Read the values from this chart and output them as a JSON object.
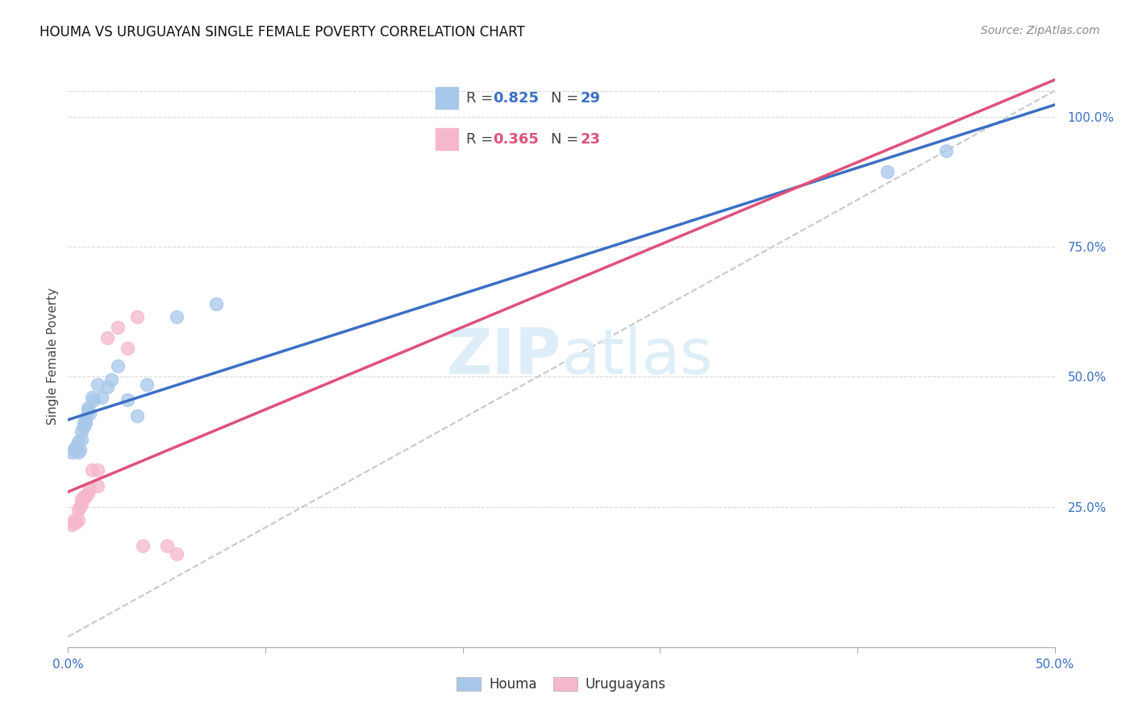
{
  "title": "HOUMA VS URUGUAYAN SINGLE FEMALE POVERTY CORRELATION CHART",
  "source": "Source: ZipAtlas.com",
  "ylabel": "Single Female Poverty",
  "xlim": [
    0.0,
    0.5
  ],
  "ylim": [
    -0.02,
    1.1
  ],
  "ytick_positions": [
    0.25,
    0.5,
    0.75,
    1.0
  ],
  "ytick_labels": [
    "25.0%",
    "50.0%",
    "75.0%",
    "100.0%"
  ],
  "xtick_positions": [
    0.0,
    0.1,
    0.2,
    0.3,
    0.4,
    0.5
  ],
  "houma_R": 0.825,
  "houma_N": 29,
  "uruguayan_R": 0.365,
  "uruguayan_N": 23,
  "houma_color": "#a8c8ea",
  "uruguayan_color": "#f5b8cb",
  "houma_line_color": "#3a6fc4",
  "uruguayan_line_color": "#e0507a",
  "diagonal_color": "#c8c8c8",
  "houma_x": [
    0.002,
    0.003,
    0.004,
    0.005,
    0.005,
    0.006,
    0.007,
    0.007,
    0.008,
    0.008,
    0.009,
    0.009,
    0.01,
    0.01,
    0.011,
    0.012,
    0.013,
    0.015,
    0.017,
    0.02,
    0.022,
    0.025,
    0.03,
    0.035,
    0.04,
    0.055,
    0.075,
    0.415,
    0.445
  ],
  "houma_y": [
    0.355,
    0.36,
    0.365,
    0.355,
    0.375,
    0.36,
    0.38,
    0.395,
    0.41,
    0.405,
    0.42,
    0.41,
    0.435,
    0.44,
    0.43,
    0.46,
    0.455,
    0.485,
    0.46,
    0.48,
    0.495,
    0.52,
    0.455,
    0.425,
    0.485,
    0.615,
    0.64,
    0.895,
    0.935
  ],
  "uruguayan_x": [
    0.002,
    0.003,
    0.003,
    0.004,
    0.005,
    0.005,
    0.006,
    0.007,
    0.007,
    0.008,
    0.009,
    0.01,
    0.011,
    0.012,
    0.015,
    0.015,
    0.02,
    0.025,
    0.03,
    0.035,
    0.038,
    0.05,
    0.055
  ],
  "uruguayan_y": [
    0.215,
    0.22,
    0.225,
    0.22,
    0.225,
    0.245,
    0.25,
    0.255,
    0.265,
    0.27,
    0.27,
    0.275,
    0.285,
    0.32,
    0.29,
    0.32,
    0.575,
    0.595,
    0.555,
    0.615,
    0.175,
    0.175,
    0.16
  ],
  "background_color": "#ffffff",
  "grid_color": "#d8d8d8",
  "watermark_color": "#ddeef8",
  "title_fontsize": 12,
  "source_fontsize": 10,
  "axis_label_fontsize": 11,
  "tick_fontsize": 11,
  "legend_fontsize": 13,
  "marker_size": 130,
  "marker_lw": 1.2
}
